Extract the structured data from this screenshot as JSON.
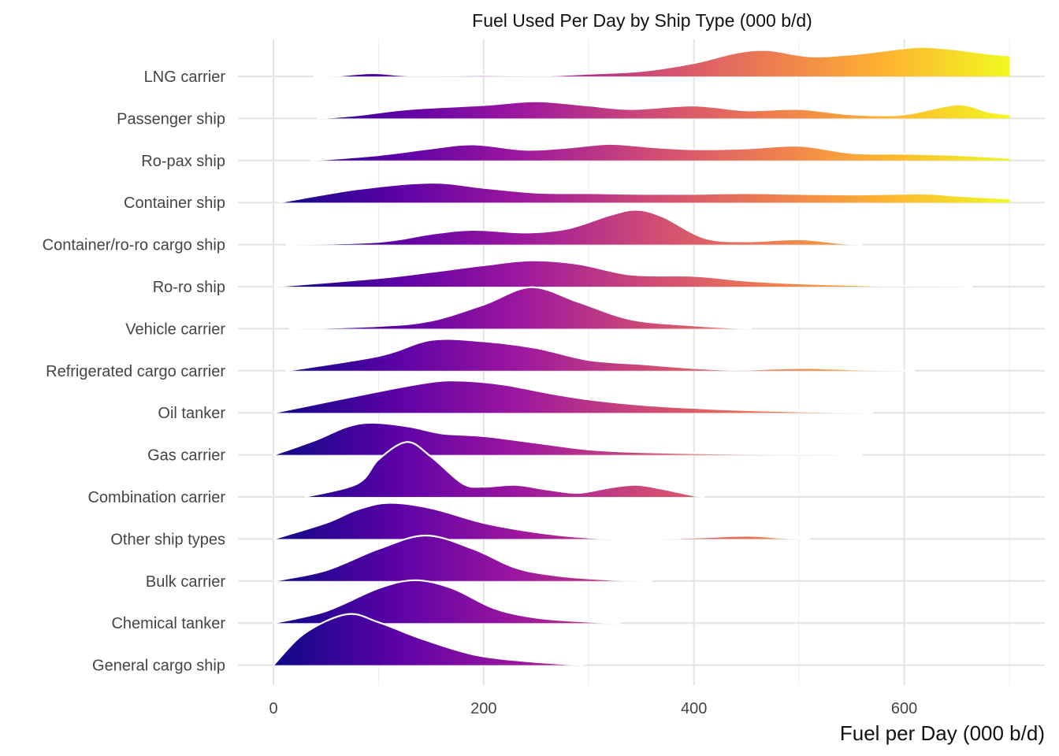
{
  "chart_data": {
    "type": "ridgeline",
    "title": "Fuel Used Per Day by Ship Type (000 b/d)",
    "xlabel": "Fuel per Day (000 b/d)",
    "ylabel": "",
    "xlim": [
      0,
      700
    ],
    "x_ticks": [
      0,
      200,
      400,
      600
    ],
    "grid": "on",
    "legend": "none",
    "color_scale": "plasma",
    "color_stops": [
      "#0d0887",
      "#5c01a6",
      "#9c179e",
      "#cc4778",
      "#ed7953",
      "#fdb42f",
      "#f0f921"
    ],
    "categories": [
      "LNG carrier",
      "Passenger ship",
      "Ro-pax ship",
      "Container ship",
      "Container/ro-ro cargo ship",
      "Ro-ro ship",
      "Vehicle carrier",
      "Refrigerated cargo carrier",
      "Oil tanker",
      "Gas carrier",
      "Combination carrier",
      "Other ship types",
      "Bulk carrier",
      "Chemical tanker",
      "General cargo ship"
    ],
    "series": [
      {
        "name": "LNG carrier",
        "x": [
          38,
          60,
          95,
          130,
          200,
          260,
          300,
          350,
          400,
          440,
          470,
          510,
          550,
          600,
          620,
          650,
          680,
          700
        ],
        "density": [
          0.0,
          0.02,
          0.12,
          0.03,
          0.04,
          0.03,
          0.1,
          0.2,
          0.5,
          0.88,
          0.98,
          0.75,
          0.82,
          1.05,
          1.1,
          1.0,
          0.85,
          0.78
        ]
      },
      {
        "name": "Passenger ship",
        "x": [
          42,
          80,
          130,
          200,
          250,
          300,
          340,
          400,
          450,
          500,
          550,
          600,
          650,
          680,
          700
        ],
        "density": [
          0.0,
          0.12,
          0.35,
          0.5,
          0.64,
          0.48,
          0.35,
          0.48,
          0.3,
          0.35,
          0.15,
          0.15,
          0.52,
          0.25,
          0.15
        ]
      },
      {
        "name": "Ro-pax ship",
        "x": [
          35,
          100,
          150,
          190,
          240,
          280,
          320,
          360,
          400,
          450,
          500,
          550,
          600,
          650,
          700
        ],
        "density": [
          0.0,
          0.2,
          0.45,
          0.6,
          0.4,
          0.48,
          0.62,
          0.5,
          0.42,
          0.45,
          0.55,
          0.28,
          0.25,
          0.2,
          0.1
        ]
      },
      {
        "name": "Container ship",
        "x": [
          5,
          80,
          150,
          200,
          250,
          300,
          350,
          400,
          450,
          500,
          550,
          620,
          650,
          700
        ],
        "density": [
          0.0,
          0.5,
          0.74,
          0.55,
          0.37,
          0.35,
          0.32,
          0.32,
          0.35,
          0.32,
          0.3,
          0.33,
          0.25,
          0.15
        ]
      },
      {
        "name": "Container/ro-ro cargo ship",
        "x": [
          12,
          100,
          150,
          190,
          240,
          280,
          320,
          345,
          370,
          410,
          450,
          500,
          540,
          560
        ],
        "density": [
          0.0,
          0.1,
          0.4,
          0.55,
          0.45,
          0.6,
          1.1,
          1.3,
          1.05,
          0.25,
          0.12,
          0.2,
          0.05,
          0.0
        ]
      },
      {
        "name": "Ro-ro ship",
        "x": [
          0,
          100,
          150,
          200,
          245,
          290,
          340,
          400,
          450,
          500,
          560,
          580,
          620,
          660,
          665
        ],
        "density": [
          0.0,
          0.32,
          0.55,
          0.8,
          0.98,
          0.85,
          0.45,
          0.4,
          0.22,
          0.12,
          0.05,
          0.03,
          0.03,
          0.01,
          0.0
        ]
      },
      {
        "name": "Vehicle carrier",
        "x": [
          15,
          100,
          150,
          200,
          245,
          290,
          340,
          400,
          455
        ],
        "density": [
          0.0,
          0.1,
          0.3,
          0.9,
          1.55,
          1.0,
          0.35,
          0.12,
          0.0
        ]
      },
      {
        "name": "Refrigerated cargo carrier",
        "x": [
          12,
          100,
          150,
          200,
          250,
          300,
          350,
          400,
          440,
          480,
          510,
          550,
          610
        ],
        "density": [
          0.0,
          0.55,
          1.15,
          1.1,
          0.85,
          0.4,
          0.25,
          0.1,
          0.03,
          0.08,
          0.1,
          0.05,
          0.0
        ]
      },
      {
        "name": "Oil tanker",
        "x": [
          0,
          100,
          150,
          180,
          220,
          260,
          300,
          350,
          400,
          450,
          500,
          560,
          570
        ],
        "density": [
          0.0,
          0.8,
          1.15,
          1.2,
          1.05,
          0.75,
          0.5,
          0.3,
          0.18,
          0.1,
          0.05,
          0.01,
          0.0
        ]
      },
      {
        "name": "Gas carrier",
        "x": [
          0,
          40,
          70,
          95,
          130,
          160,
          200,
          250,
          300,
          350,
          400,
          450,
          510,
          560
        ],
        "density": [
          0.0,
          0.55,
          1.05,
          1.2,
          1.05,
          0.8,
          0.7,
          0.45,
          0.2,
          0.1,
          0.06,
          0.03,
          0.02,
          0.0
        ]
      },
      {
        "name": "Combination carrier",
        "x": [
          30,
          80,
          100,
          127,
          150,
          180,
          200,
          230,
          260,
          290,
          320,
          345,
          370,
          400,
          410
        ],
        "density": [
          0.0,
          0.5,
          1.4,
          2.05,
          1.5,
          0.5,
          0.38,
          0.45,
          0.28,
          0.15,
          0.35,
          0.45,
          0.3,
          0.05,
          0.0
        ]
      },
      {
        "name": "Other ship types",
        "x": [
          0,
          50,
          80,
          110,
          150,
          200,
          250,
          300,
          350,
          400,
          450,
          480,
          510
        ],
        "density": [
          0.0,
          0.6,
          1.1,
          1.35,
          1.15,
          0.6,
          0.25,
          0.05,
          0.0,
          0.05,
          0.12,
          0.05,
          0.0
        ]
      },
      {
        "name": "Bulk carrier",
        "x": [
          0,
          50,
          100,
          145,
          190,
          230,
          270,
          320,
          360
        ],
        "density": [
          0.0,
          0.4,
          1.2,
          1.7,
          1.2,
          0.5,
          0.2,
          0.05,
          0.0
        ]
      },
      {
        "name": "Chemical tanker",
        "x": [
          0,
          50,
          100,
          135,
          170,
          210,
          250,
          300,
          330
        ],
        "density": [
          0.0,
          0.45,
          1.3,
          1.6,
          1.3,
          0.55,
          0.2,
          0.05,
          0.0
        ]
      },
      {
        "name": "General cargo ship",
        "x": [
          0,
          30,
          70,
          100,
          140,
          190,
          240,
          295
        ],
        "density": [
          0.0,
          1.2,
          1.9,
          1.6,
          1.0,
          0.4,
          0.15,
          0.0
        ]
      }
    ]
  }
}
